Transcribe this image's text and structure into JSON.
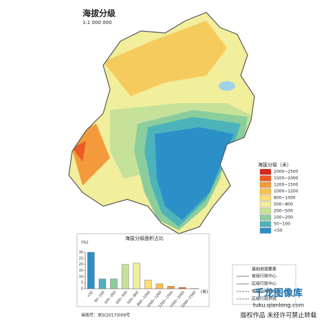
{
  "map": {
    "title": "海拔分级",
    "scale": "1:1 000 000",
    "legend_title": "海拔分级（米）",
    "legend": [
      {
        "label": "2000~2500",
        "color": "#d9261c"
      },
      {
        "label": "1500~2000",
        "color": "#ee5a24"
      },
      {
        "label": "1200~1500",
        "color": "#f39a3c"
      },
      {
        "label": "1000~1200",
        "color": "#f7c24e"
      },
      {
        "label": "800~1000",
        "color": "#fadf74"
      },
      {
        "label": "500~800",
        "color": "#f1ee9c"
      },
      {
        "label": "200~500",
        "color": "#c6e29a"
      },
      {
        "label": "100~200",
        "color": "#8ccd9c"
      },
      {
        "label": "50~100",
        "color": "#4db3bb"
      },
      {
        "label": "<50",
        "color": "#2c90c8"
      }
    ],
    "elements_title": "基础地理要素",
    "elements": [
      "省级行政中心",
      "区级行政中心",
      "省级行政界线",
      "区级行政界线"
    ],
    "approval": "审图号：京S(2017)009号",
    "watermark": {
      "brand": "千龙图像库",
      "url": "tuku.qianlong.com",
      "notice": "版权作品 未经许可禁止转载"
    }
  },
  "chart_data": {
    "type": "bar",
    "title": "海拔分级面积占比",
    "y_label": "(%)",
    "x_label": "(米)",
    "categories": [
      "<50",
      "50~100",
      "100~200",
      "200~500",
      "500~800",
      "800~1000",
      "1000~1200",
      "1200~1500",
      "1500~2000",
      "2000~2500"
    ],
    "values": [
      30,
      8,
      8,
      20,
      21,
      7,
      4,
      2,
      1,
      0.1
    ],
    "colors": [
      "#2c90c8",
      "#4db3bb",
      "#8ccd9c",
      "#c6e29a",
      "#f1ee9c",
      "#fadf74",
      "#f7c24e",
      "#f39a3c",
      "#ee5a24",
      "#d9261c"
    ],
    "ylim": [
      0,
      30
    ],
    "yticks": [
      0,
      5,
      10,
      15,
      20,
      25,
      30
    ]
  }
}
